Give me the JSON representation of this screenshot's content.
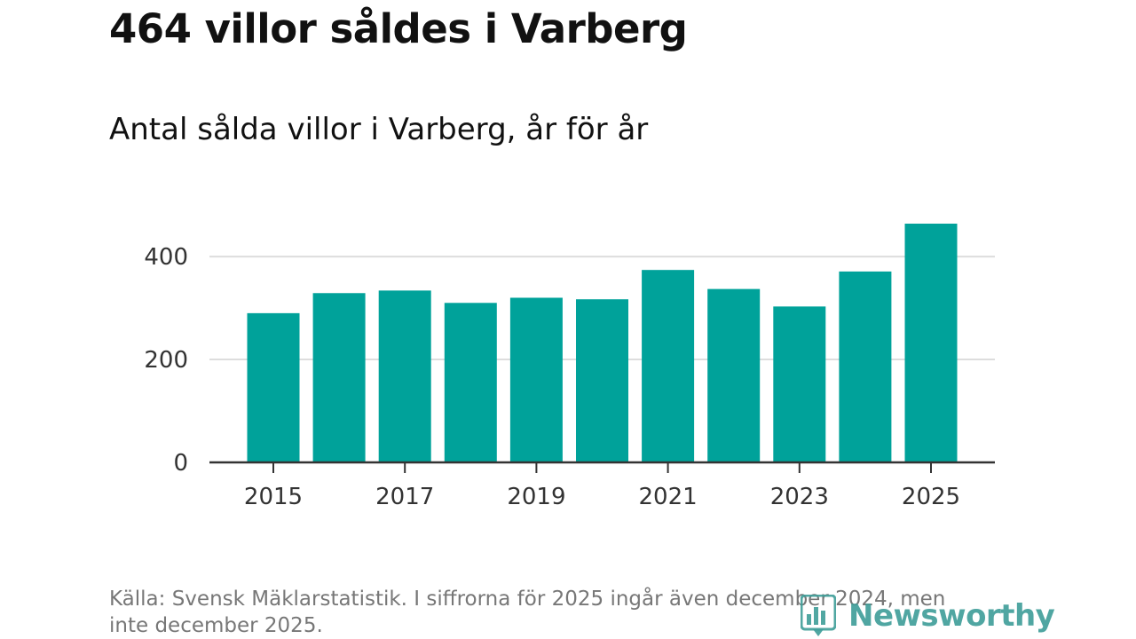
{
  "title": "464 villor såldes i Varberg",
  "subtitle": "Antal sålda villor i Varberg, år för år",
  "source": "Källa: Svensk Mäklarstatistik. I siffrorna för 2025 ingår även december 2024, men inte december 2025.",
  "brand": {
    "name": "Newsworthy",
    "color": "#3e9d98"
  },
  "colors": {
    "bar": "#00a29a",
    "grid": "#dddddd",
    "axis": "#333333"
  },
  "chart_data": {
    "type": "bar",
    "title": "464 villor såldes i Varberg",
    "subtitle": "Antal sålda villor i Varberg, år för år",
    "categories": [
      "2015",
      "2016",
      "2017",
      "2018",
      "2019",
      "2020",
      "2021",
      "2022",
      "2023",
      "2024",
      "2025"
    ],
    "values": [
      290,
      329,
      334,
      310,
      320,
      317,
      374,
      337,
      303,
      371,
      464
    ],
    "x_tick_labels": [
      "2015",
      "2017",
      "2019",
      "2021",
      "2023",
      "2025"
    ],
    "y_ticks": [
      0,
      200,
      400
    ],
    "ylim": [
      0,
      464
    ],
    "xlabel": "",
    "ylabel": "",
    "grid": true
  }
}
